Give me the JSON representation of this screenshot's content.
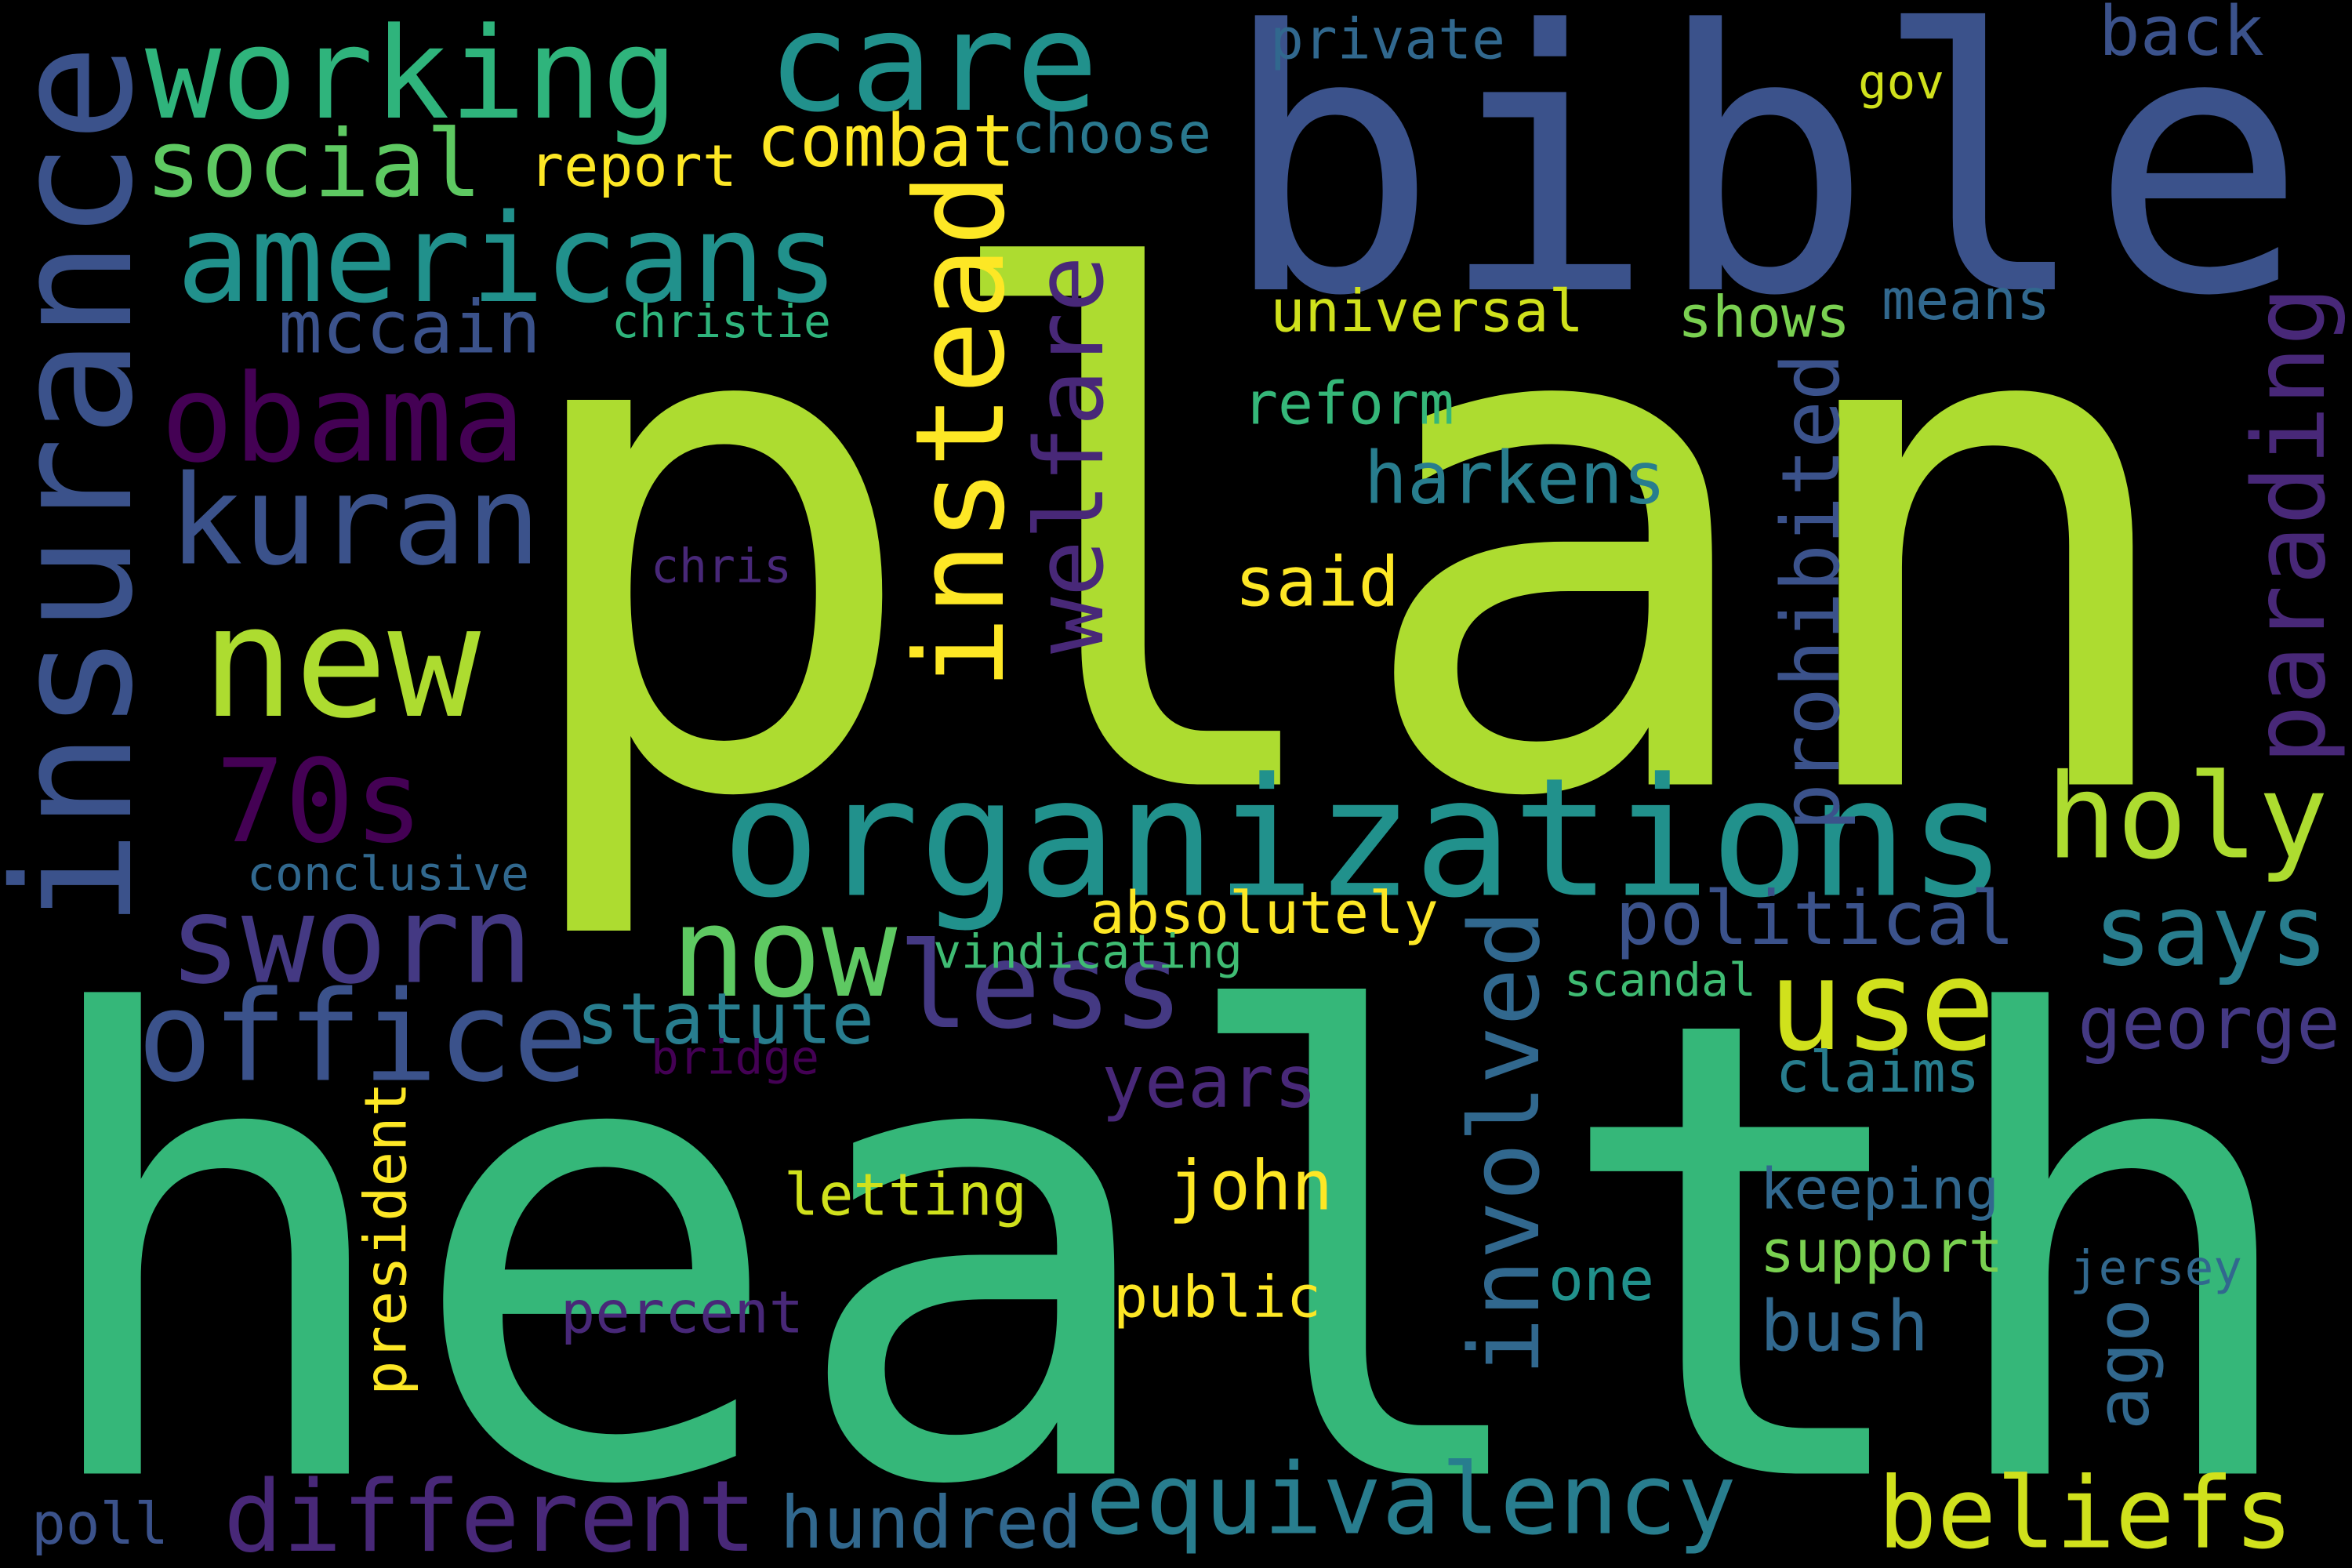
{
  "cloud": {
    "background": "#000000",
    "words": [
      {
        "text": "health",
        "color": "#35b779"
      },
      {
        "text": "plan",
        "color": "#addc30"
      },
      {
        "text": "bible",
        "color": "#3b528b"
      },
      {
        "text": "organizations",
        "color": "#21918c"
      },
      {
        "text": "insurance",
        "color": "#3b528b"
      },
      {
        "text": "care",
        "color": "#21918c"
      },
      {
        "text": "working",
        "color": "#2fb47c"
      },
      {
        "text": "instead",
        "color": "#fde725"
      },
      {
        "text": "new",
        "color": "#addc30"
      },
      {
        "text": "americans",
        "color": "#21918c"
      },
      {
        "text": "welfare",
        "color": "#482878"
      },
      {
        "text": "holy",
        "color": "#addc30"
      },
      {
        "text": "kuran",
        "color": "#3b528b"
      },
      {
        "text": "sworn",
        "color": "#443983"
      },
      {
        "text": "obama",
        "color": "#440154"
      },
      {
        "text": "70s",
        "color": "#440154"
      },
      {
        "text": "use",
        "color": "#d0e11c"
      },
      {
        "text": "less",
        "color": "#443983"
      },
      {
        "text": "social",
        "color": "#5ec962"
      },
      {
        "text": "office",
        "color": "#3b528b"
      },
      {
        "text": "now",
        "color": "#5ec962"
      },
      {
        "text": "parading",
        "color": "#482878"
      },
      {
        "text": "different",
        "color": "#482878"
      },
      {
        "text": "involved",
        "color": "#31688e"
      },
      {
        "text": "equivalency",
        "color": "#287d8e"
      },
      {
        "text": "beliefs",
        "color": "#d0e11c"
      },
      {
        "text": "says",
        "color": "#287d8e"
      },
      {
        "text": "harkens",
        "color": "#287d8e"
      },
      {
        "text": "political",
        "color": "#3b528b"
      },
      {
        "text": "prohibited",
        "color": "#3b528b"
      },
      {
        "text": "statute",
        "color": "#287d8e"
      },
      {
        "text": "combat",
        "color": "#fde725"
      },
      {
        "text": "george",
        "color": "#443983"
      },
      {
        "text": "john",
        "color": "#fde725"
      },
      {
        "text": "bush",
        "color": "#31688e"
      },
      {
        "text": "mccain",
        "color": "#3b528b"
      },
      {
        "text": "said",
        "color": "#fde725"
      },
      {
        "text": "years",
        "color": "#482878"
      },
      {
        "text": "universal",
        "color": "#d0e11c"
      },
      {
        "text": "hundred",
        "color": "#31688e"
      },
      {
        "text": "back",
        "color": "#3b528b"
      },
      {
        "text": "public",
        "color": "#fde725"
      },
      {
        "text": "support",
        "color": "#7ad151"
      },
      {
        "text": "report",
        "color": "#fde725"
      },
      {
        "text": "choose",
        "color": "#2a788e"
      },
      {
        "text": "reform",
        "color": "#35b779"
      },
      {
        "text": "shows",
        "color": "#7ad151"
      },
      {
        "text": "percent",
        "color": "#482878"
      },
      {
        "text": "letting",
        "color": "#d0e11c"
      },
      {
        "text": "absolutely",
        "color": "#fde725"
      },
      {
        "text": "president",
        "color": "#fde725"
      },
      {
        "text": "private",
        "color": "#31688e"
      },
      {
        "text": "keeping",
        "color": "#31688e"
      },
      {
        "text": "claims",
        "color": "#287d8e"
      },
      {
        "text": "means",
        "color": "#31688e"
      },
      {
        "text": "christie",
        "color": "#2fb47c"
      },
      {
        "text": "ago",
        "color": "#31688e"
      },
      {
        "text": "one",
        "color": "#21918c"
      },
      {
        "text": "poll",
        "color": "#3b528b"
      },
      {
        "text": "vindicating",
        "color": "#3fbc73"
      },
      {
        "text": "conclusive",
        "color": "#31688e"
      },
      {
        "text": "chris",
        "color": "#482878"
      },
      {
        "text": "scandal",
        "color": "#3fbc73"
      },
      {
        "text": "jersey",
        "color": "#31688e"
      },
      {
        "text": "bridge",
        "color": "#440154"
      },
      {
        "text": "gov",
        "color": "#d0e11c"
      }
    ]
  }
}
